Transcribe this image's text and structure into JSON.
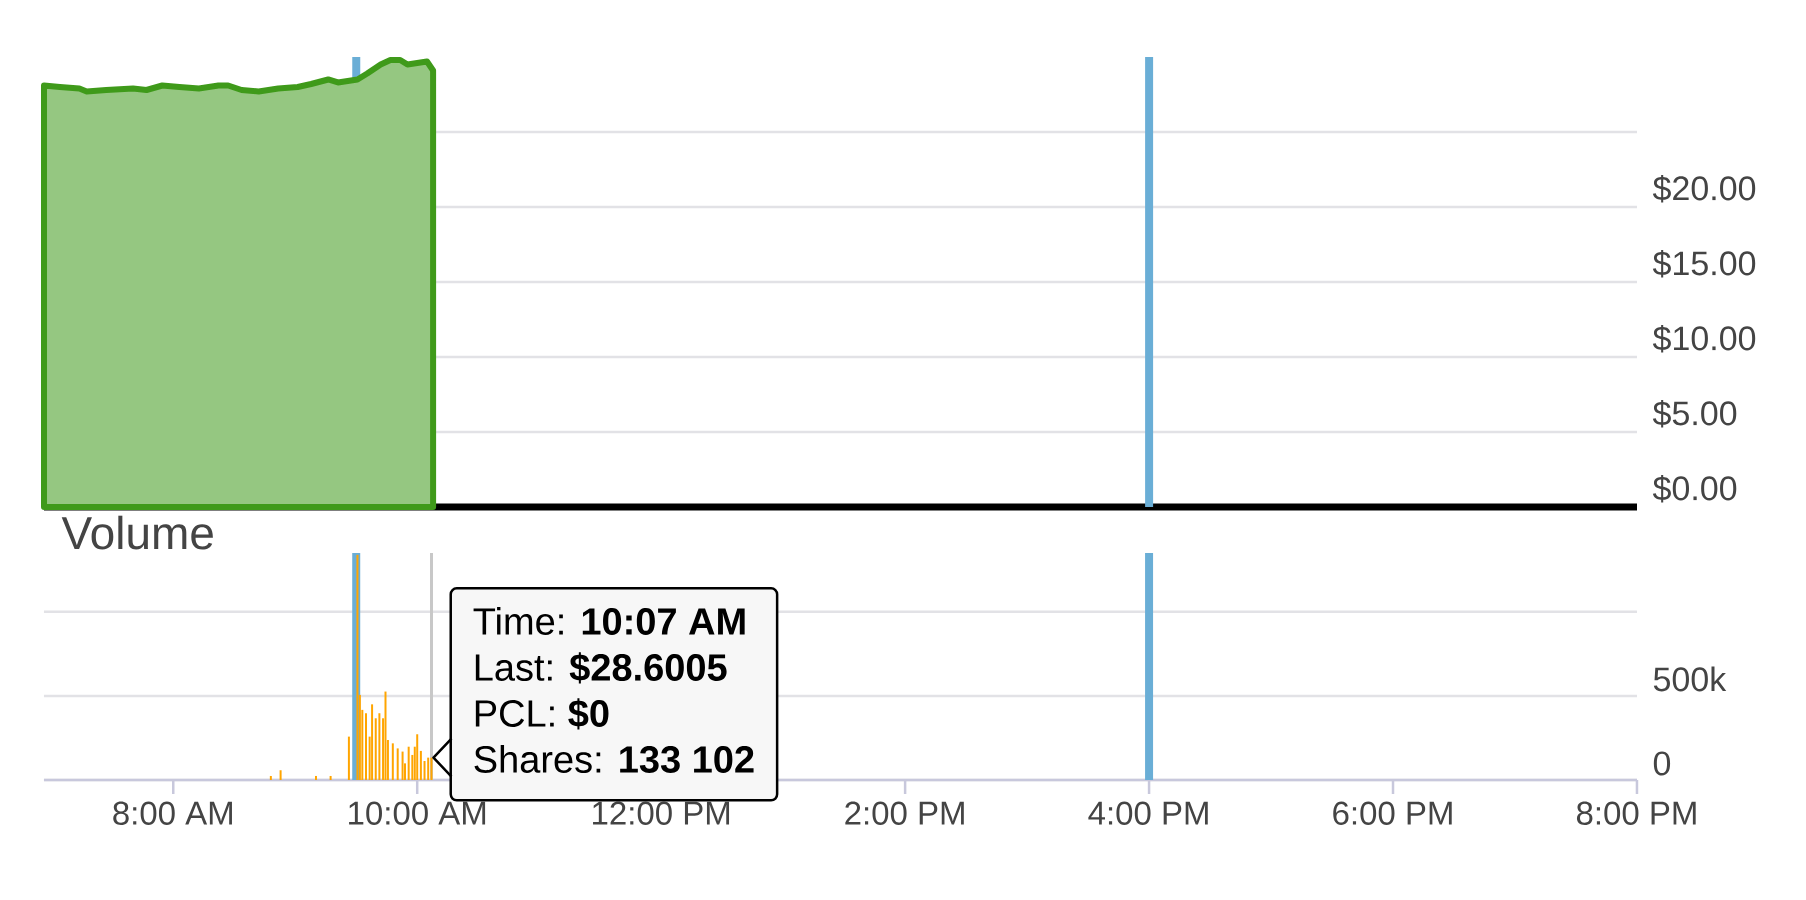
{
  "chart_data": [
    {
      "type": "area",
      "xlim": [
        6.94,
        20
      ],
      "ylim": [
        0,
        30
      ],
      "tick_labels": "y",
      "grid": "y",
      "yticks": [
        {
          "value": 0,
          "label": "$0.00"
        },
        {
          "value": 5,
          "label": "$5.00"
        },
        {
          "value": 10,
          "label": "$10.00"
        },
        {
          "value": 15,
          "label": "$15.00"
        },
        {
          "value": 20,
          "label": "$20.00"
        },
        {
          "value": 25,
          "label": null
        }
      ],
      "ref_lines": [
        {
          "axis": "x",
          "value": 9.5,
          "color": "#6aaed6"
        },
        {
          "axis": "x",
          "value": 16,
          "color": "#6aaed6"
        }
      ],
      "series": [
        {
          "color": "#3f9a1a",
          "x": [
            6.94,
            7.07,
            7.23,
            7.29,
            7.45,
            7.67,
            7.78,
            7.91,
            8.05,
            8.21,
            8.37,
            8.45,
            8.56,
            8.7,
            8.86,
            9.02,
            9.13,
            9.27,
            9.35,
            9.43,
            9.51,
            9.59,
            9.7,
            9.78,
            9.86,
            9.92,
            10.0,
            10.08,
            10.13
          ],
          "values": [
            28.1,
            28.0,
            27.9,
            27.7,
            27.8,
            27.9,
            27.8,
            28.1,
            28.0,
            27.9,
            28.1,
            28.1,
            27.8,
            27.7,
            27.9,
            28.0,
            28.2,
            28.5,
            28.3,
            28.4,
            28.5,
            28.9,
            29.5,
            29.8,
            29.8,
            29.5,
            29.6,
            29.7,
            29.1
          ]
        }
      ]
    },
    {
      "type": "bar",
      "title": "Volume",
      "xlim": [
        6.94,
        20
      ],
      "ylim": [
        0,
        1350000
      ],
      "grid": "y",
      "xticks": [
        {
          "value": 8,
          "label": "8:00 AM"
        },
        {
          "value": 10,
          "label": "10:00 AM"
        },
        {
          "value": 12,
          "label": "12:00 PM"
        },
        {
          "value": 14,
          "label": "2:00 PM"
        },
        {
          "value": 16,
          "label": "4:00 PM"
        },
        {
          "value": 18,
          "label": "6:00 PM"
        },
        {
          "value": 20,
          "label": "8:00 PM"
        }
      ],
      "yticks": [
        0,
        {
          "value": 500000,
          "label": "500k"
        },
        {
          "value": 1000000,
          "label": null
        }
      ],
      "ref_lines": [
        {
          "axis": "x",
          "value": 9.5,
          "color": "#6aaed6"
        },
        {
          "axis": "x",
          "value": 16,
          "color": "#6aaed6"
        },
        {
          "axis": "x",
          "value": 10.117,
          "color": "#c8c8c8"
        }
      ],
      "annotations": [
        "Time: **10:07 AM**",
        "Last: **$28.6005**",
        "PCL: **$0**",
        "Shares: **133 102**"
      ],
      "series": [
        {
          "color": "#ffa500",
          "x": [
            8.8,
            8.88,
            9.17,
            9.29,
            9.44,
            9.51,
            9.53,
            9.55,
            9.58,
            9.61,
            9.63,
            9.66,
            9.69,
            9.72,
            9.74,
            9.76,
            9.8,
            9.84,
            9.88,
            9.9,
            9.93,
            9.96,
            9.98,
            10.0,
            10.03,
            10.06,
            10.09,
            10.117
          ],
          "values": [
            24000,
            58000,
            24000,
            24000,
            258000,
            1339000,
            506000,
            417000,
            397000,
            258000,
            450000,
            367000,
            397000,
            367000,
            526000,
            238000,
            218000,
            188000,
            169000,
            99000,
            198000,
            149000,
            198000,
            272000,
            173000,
            113000,
            133000,
            133102
          ]
        }
      ]
    }
  ]
}
